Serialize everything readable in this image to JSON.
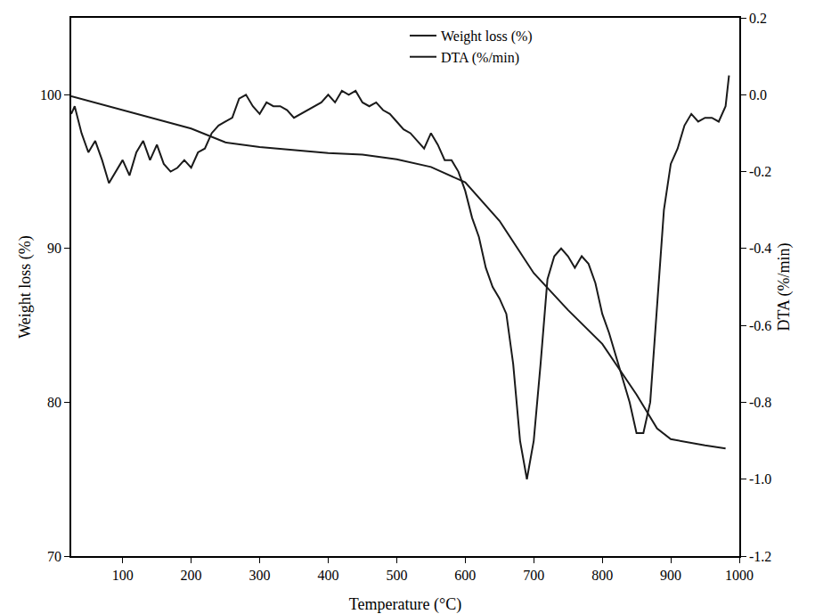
{
  "chart_data": {
    "type": "line",
    "x_label": "Temperature (°C)",
    "y_label": "Weight loss (%)",
    "y2_label": "DTA (%/min)",
    "xlim": [
      25,
      1000
    ],
    "xticks": [
      100,
      200,
      300,
      400,
      500,
      600,
      700,
      800,
      900,
      1000
    ],
    "ylim": [
      70,
      105
    ],
    "yticks": [
      70,
      80,
      90,
      100
    ],
    "y2lim": [
      -1.2,
      0.2
    ],
    "y2ticks": [
      {
        "value": -1.2,
        "label": "-1.2"
      },
      {
        "value": -1.0,
        "label": "-1.0"
      },
      {
        "value": -0.8,
        "label": "-0.8"
      },
      {
        "value": -0.6,
        "label": "-0.6"
      },
      {
        "value": -0.4,
        "label": "-0.4"
      },
      {
        "value": -0.2,
        "label": "-0.2"
      },
      {
        "value": 0.0,
        "label": "0.0"
      },
      {
        "value": 0.2,
        "label": "0.2"
      }
    ],
    "grid": false,
    "legend": "top right",
    "series": [
      {
        "name": "Weight loss (%)",
        "color": "#1a1a1a",
        "axis": "y",
        "x": [
          25,
          100,
          200,
          250,
          300,
          400,
          450,
          500,
          550,
          600,
          650,
          700,
          750,
          800,
          850,
          880,
          900,
          950,
          980
        ],
        "values": [
          99.9,
          99.0,
          97.8,
          96.9,
          96.6,
          96.2,
          96.1,
          95.8,
          95.3,
          94.3,
          91.8,
          88.4,
          86.0,
          83.8,
          80.5,
          78.3,
          77.6,
          77.2,
          77.0
        ]
      },
      {
        "name": "DTA (%/min)",
        "color": "#1a1a1a",
        "axis": "y2",
        "x": [
          25,
          30,
          40,
          50,
          60,
          70,
          80,
          90,
          100,
          110,
          120,
          130,
          140,
          150,
          160,
          170,
          180,
          190,
          200,
          210,
          220,
          230,
          240,
          250,
          260,
          270,
          280,
          290,
          300,
          310,
          320,
          330,
          340,
          350,
          360,
          370,
          380,
          390,
          400,
          410,
          420,
          430,
          440,
          450,
          460,
          470,
          480,
          490,
          500,
          510,
          520,
          530,
          540,
          550,
          560,
          570,
          580,
          590,
          600,
          610,
          620,
          630,
          640,
          650,
          660,
          670,
          680,
          690,
          700,
          710,
          720,
          730,
          740,
          750,
          760,
          770,
          780,
          790,
          800,
          810,
          820,
          830,
          840,
          850,
          860,
          870,
          880,
          890,
          900,
          910,
          920,
          930,
          940,
          950,
          960,
          970,
          980,
          985
        ],
        "values": [
          -0.05,
          -0.03,
          -0.1,
          -0.15,
          -0.12,
          -0.17,
          -0.23,
          -0.2,
          -0.17,
          -0.21,
          -0.15,
          -0.12,
          -0.17,
          -0.13,
          -0.18,
          -0.2,
          -0.19,
          -0.17,
          -0.19,
          -0.15,
          -0.14,
          -0.1,
          -0.08,
          -0.07,
          -0.06,
          -0.01,
          0.0,
          -0.03,
          -0.05,
          -0.02,
          -0.03,
          -0.03,
          -0.04,
          -0.06,
          -0.05,
          -0.04,
          -0.03,
          -0.02,
          0.0,
          -0.02,
          0.01,
          0.0,
          0.01,
          -0.02,
          -0.03,
          -0.02,
          -0.04,
          -0.05,
          -0.07,
          -0.09,
          -0.1,
          -0.12,
          -0.14,
          -0.1,
          -0.13,
          -0.17,
          -0.17,
          -0.2,
          -0.25,
          -0.32,
          -0.37,
          -0.45,
          -0.5,
          -0.53,
          -0.57,
          -0.7,
          -0.9,
          -1.0,
          -0.9,
          -0.7,
          -0.48,
          -0.42,
          -0.4,
          -0.42,
          -0.45,
          -0.42,
          -0.44,
          -0.49,
          -0.57,
          -0.62,
          -0.68,
          -0.74,
          -0.8,
          -0.88,
          -0.88,
          -0.8,
          -0.55,
          -0.3,
          -0.18,
          -0.14,
          -0.08,
          -0.05,
          -0.07,
          -0.06,
          -0.06,
          -0.07,
          -0.03,
          0.05
        ]
      }
    ]
  }
}
